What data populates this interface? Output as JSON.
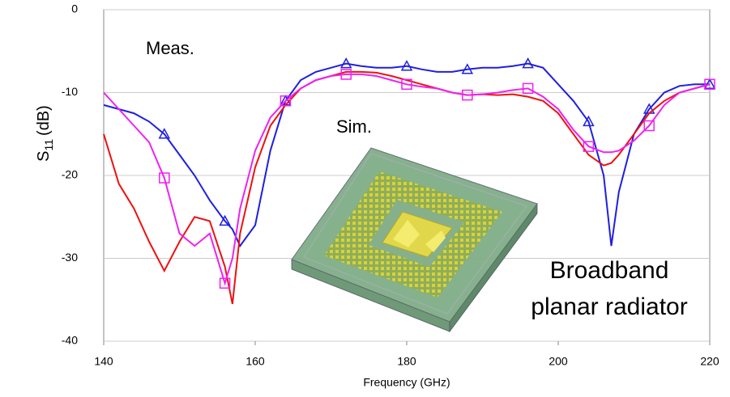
{
  "chart_data": {
    "type": "line",
    "xlabel": "Frequency (GHz)",
    "ylabel": {
      "symbol": "S",
      "subscript": "11",
      "unit": "(dB)"
    },
    "annotations": [
      "Meas.",
      "Sim.",
      "Broadband",
      "planar radiator"
    ],
    "xlim": [
      140,
      220
    ],
    "xticks": [
      140,
      160,
      180,
      200,
      220
    ],
    "ylim": [
      -40,
      0
    ],
    "yticks": [
      0,
      -10,
      -20,
      -30,
      -40
    ],
    "grid": true,
    "x": [
      140,
      142,
      144,
      146,
      148,
      150,
      152,
      154,
      156,
      157,
      158,
      160,
      162,
      164,
      166,
      168,
      170,
      172,
      174,
      176,
      178,
      180,
      182,
      184,
      186,
      188,
      190,
      192,
      194,
      196,
      198,
      200,
      202,
      204,
      206,
      207,
      208,
      210,
      212,
      214,
      216,
      218,
      220
    ],
    "series": [
      {
        "color": "#1f1fe0",
        "marker": "triangle",
        "marker_x": [
          148,
          156,
          164,
          172,
          180,
          188,
          196,
          204,
          212,
          220
        ],
        "values": [
          -11.5,
          -12,
          -12.5,
          -13.5,
          -15,
          -17.5,
          -20,
          -23,
          -25.5,
          -26.5,
          -28.5,
          -26,
          -17,
          -11,
          -8.5,
          -7.5,
          -7,
          -6.5,
          -6.8,
          -7,
          -7,
          -6.8,
          -7.2,
          -7.5,
          -7.5,
          -7.2,
          -7,
          -7,
          -6.8,
          -6.5,
          -7,
          -9,
          -11,
          -13.5,
          -20,
          -28.5,
          -22,
          -15,
          -12,
          -10,
          -9.2,
          -9,
          -9
        ]
      },
      {
        "color": "#ee1111",
        "marker": "none",
        "values": [
          -15,
          -21,
          -24,
          -28,
          -31.5,
          -28,
          -25,
          -25.5,
          -31,
          -35.5,
          -27,
          -19,
          -14,
          -11.5,
          -9.5,
          -8.5,
          -8,
          -7.5,
          -7.5,
          -7.6,
          -8,
          -8.5,
          -9,
          -9.5,
          -10,
          -10.3,
          -10.2,
          -10.3,
          -10.2,
          -10.5,
          -11,
          -12.5,
          -15,
          -17.5,
          -18.8,
          -18.5,
          -17.5,
          -15,
          -12.5,
          -11,
          -10,
          -9.5,
          -9
        ]
      },
      {
        "color": "#ee22ee",
        "marker": "square",
        "marker_x": [
          148,
          156,
          164,
          172,
          180,
          188,
          196,
          204,
          212,
          220
        ],
        "values": [
          -10,
          -12,
          -14,
          -16,
          -20.3,
          -27,
          -28.5,
          -27,
          -33,
          -30,
          -24,
          -17,
          -13,
          -11,
          -9.5,
          -8.5,
          -8,
          -7.8,
          -7.8,
          -8,
          -8.5,
          -9,
          -9.3,
          -9.5,
          -10,
          -10.3,
          -10.2,
          -10,
          -9.7,
          -9.5,
          -10.5,
          -12,
          -14.5,
          -16.5,
          -17.2,
          -17.2,
          -17,
          -15.8,
          -14,
          -11.5,
          -10,
          -9.5,
          -9
        ]
      }
    ]
  }
}
